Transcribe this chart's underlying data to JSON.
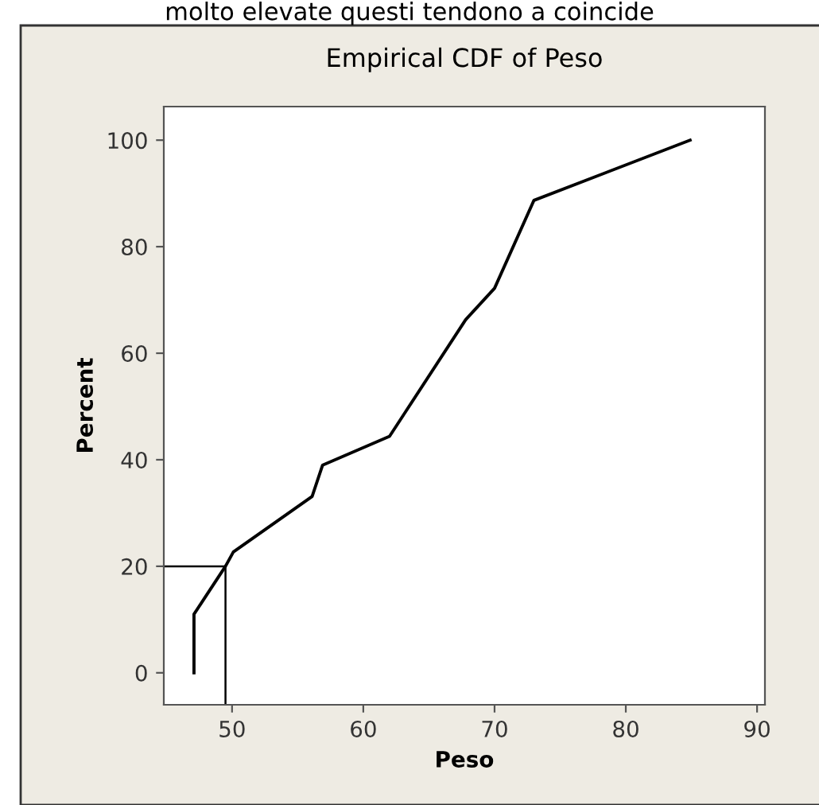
{
  "chart_data": {
    "type": "line",
    "title": "Empirical CDF of Peso",
    "xlabel": "Peso",
    "ylabel": "Percent",
    "annotations": [
      "molto elevate questi tendono a coincide"
    ],
    "x": [
      47.1,
      47.1,
      49.5,
      50.1,
      56.1,
      56.9,
      62.0,
      67.8,
      70.0,
      73.0,
      84.9
    ],
    "series": [
      {
        "color": "#000000",
        "values": [
          0,
          11,
          20,
          22.7,
          33.1,
          39,
          44.4,
          66.3,
          72.2,
          88.7,
          100
        ]
      }
    ],
    "xlim": [
      44.8,
      90.6
    ],
    "ylim": [
      -6,
      106.3
    ],
    "xticks": [
      50,
      60,
      70,
      80,
      90
    ],
    "yticks": [
      0,
      20,
      40,
      60,
      80,
      100
    ],
    "ref_lines": [
      {
        "axis": "x",
        "value": 49.5,
        "color": "#000000"
      },
      {
        "axis": "y",
        "value": 20,
        "color": "#000000"
      }
    ],
    "grid": false,
    "marker": "none",
    "line_style": "solid"
  }
}
